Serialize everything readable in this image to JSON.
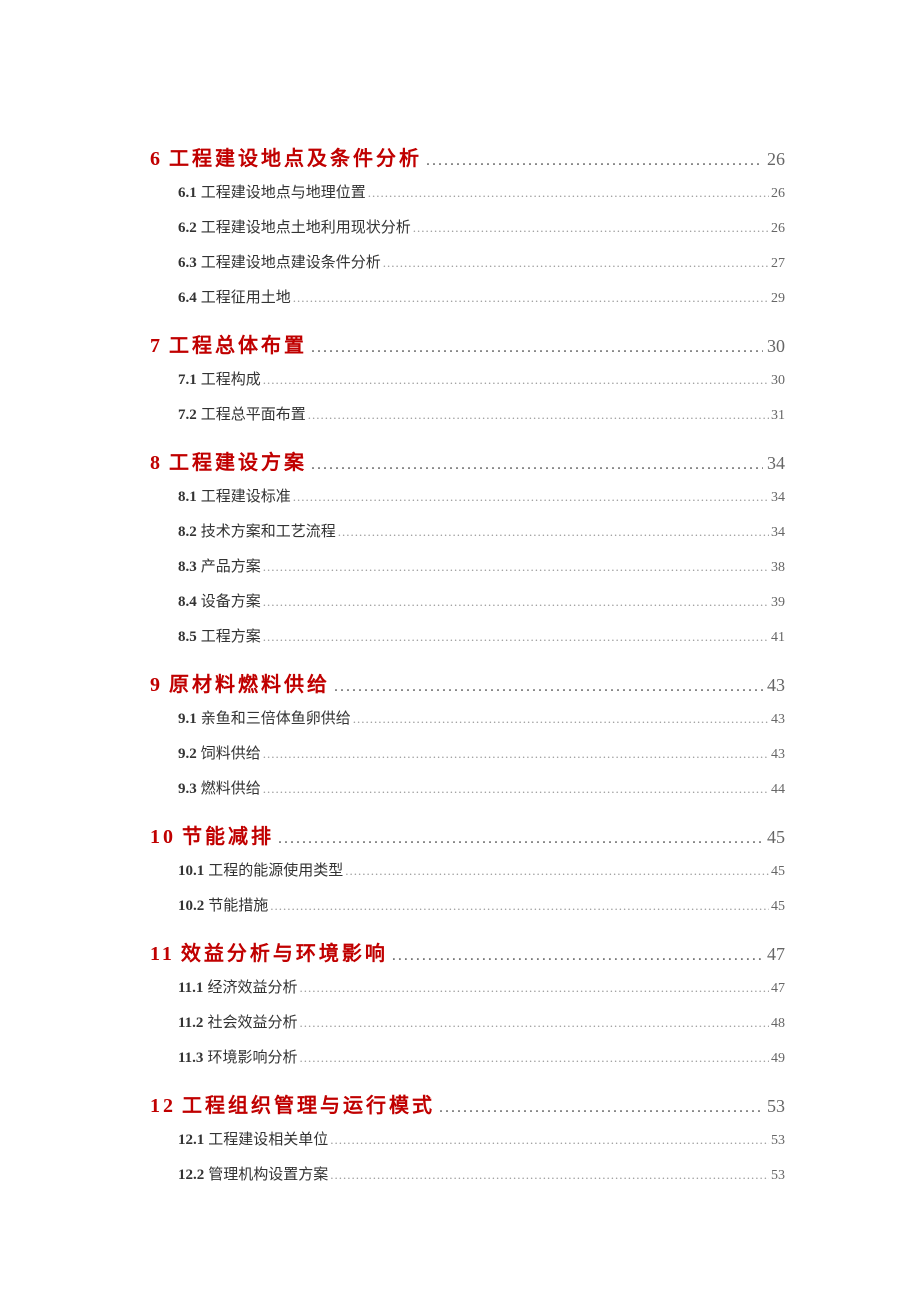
{
  "colors": {
    "main_heading": "#c00000",
    "sub_heading": "#333333",
    "page_number": "#666666",
    "dots": "#999999",
    "background": "#ffffff"
  },
  "typography": {
    "main_fontsize": 20,
    "sub_fontsize": 15,
    "main_letter_spacing": 3,
    "font_family": "SimSun"
  },
  "toc": [
    {
      "number": "6",
      "title": "工程建设地点及条件分析",
      "page": "26",
      "items": [
        {
          "number": "6.1",
          "title": "工程建设地点与地理位置",
          "page": "26"
        },
        {
          "number": "6.2",
          "title": "工程建设地点土地利用现状分析",
          "page": "26"
        },
        {
          "number": "6.3",
          "title": "工程建设地点建设条件分析",
          "page": "27"
        },
        {
          "number": "6.4",
          "title": "工程征用土地",
          "page": "29"
        }
      ]
    },
    {
      "number": "7",
      "title": "工程总体布置",
      "page": "30",
      "items": [
        {
          "number": "7.1",
          "title": "工程构成",
          "page": "30"
        },
        {
          "number": "7.2",
          "title": "工程总平面布置",
          "page": "31"
        }
      ]
    },
    {
      "number": "8",
      "title": "工程建设方案",
      "page": "34",
      "items": [
        {
          "number": "8.1",
          "title": "工程建设标准",
          "page": "34"
        },
        {
          "number": "8.2",
          "title": "技术方案和工艺流程",
          "page": "34"
        },
        {
          "number": "8.3",
          "title": "产品方案",
          "page": "38"
        },
        {
          "number": "8.4",
          "title": "设备方案",
          "page": "39"
        },
        {
          "number": "8.5",
          "title": "工程方案",
          "page": "41"
        }
      ]
    },
    {
      "number": "9",
      "title": "原材料燃料供给",
      "page": "43",
      "items": [
        {
          "number": "9.1",
          "title": "亲鱼和三倍体鱼卵供给",
          "page": "43"
        },
        {
          "number": "9.2",
          "title": "饲料供给",
          "page": "43"
        },
        {
          "number": "9.3",
          "title": "燃料供给",
          "page": "44"
        }
      ]
    },
    {
      "number": "10",
      "title": "节能减排",
      "page": "45",
      "items": [
        {
          "number": "10.1",
          "title": "工程的能源使用类型",
          "page": "45"
        },
        {
          "number": "10.2",
          "title": "节能措施",
          "page": "45"
        }
      ]
    },
    {
      "number": "11",
      "title": "效益分析与环境影响",
      "page": "47",
      "items": [
        {
          "number": "11.1",
          "title": "经济效益分析",
          "page": "47"
        },
        {
          "number": "11.2",
          "title": "社会效益分析",
          "page": "48"
        },
        {
          "number": "11.3",
          "title": "环境影响分析",
          "page": "49"
        }
      ]
    },
    {
      "number": "12",
      "title": "工程组织管理与运行模式",
      "page": "53",
      "items": [
        {
          "number": "12.1",
          "title": "工程建设相关单位",
          "page": "53"
        },
        {
          "number": "12.2",
          "title": "管理机构设置方案",
          "page": "53"
        }
      ]
    }
  ]
}
